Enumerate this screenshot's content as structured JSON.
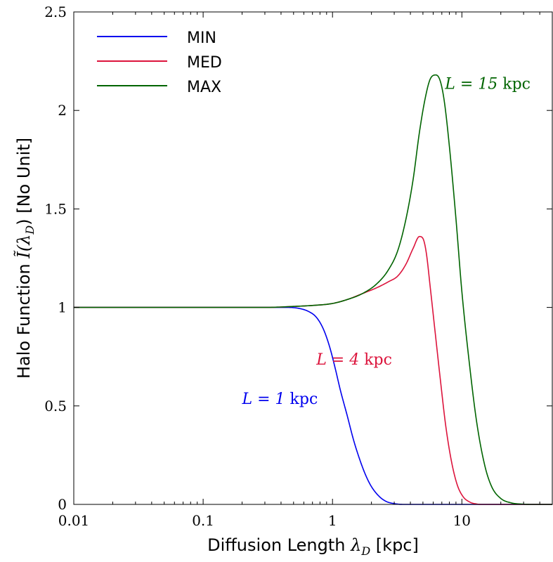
{
  "chart_data": {
    "type": "line",
    "x_scale": "log",
    "xlim": [
      0.01,
      50
    ],
    "ylim": [
      0,
      2.5
    ],
    "xlabel": "Diffusion Length λD [kpc]",
    "xlabel_main": "Diffusion Length ",
    "xlabel_symbol": "λ",
    "xlabel_sub": "D",
    "xlabel_unit": " [kpc]",
    "ylabel": "Halo Function Ĩ(λD) [No Unit]",
    "ylabel_main": "Halo Function ",
    "ylabel_symbol": "Ĩ(λ",
    "ylabel_sub": "D",
    "ylabel_unit": ") [No Unit]",
    "x_ticks": [
      {
        "value": 0.01,
        "label": "0.01"
      },
      {
        "value": 0.1,
        "label": "0.1"
      },
      {
        "value": 1,
        "label": "1"
      },
      {
        "value": 10,
        "label": "10"
      }
    ],
    "y_ticks": [
      {
        "value": 0,
        "label": "0"
      },
      {
        "value": 0.5,
        "label": "0.5"
      },
      {
        "value": 1,
        "label": "1"
      },
      {
        "value": 1.5,
        "label": "1.5"
      },
      {
        "value": 2,
        "label": "2"
      },
      {
        "value": 2.5,
        "label": "2.5"
      }
    ],
    "legend_position": "top-left",
    "grid": false,
    "series": [
      {
        "name": "MIN",
        "color": "#0000ee",
        "points": [
          [
            0.01,
            1.0
          ],
          [
            0.1,
            1.0
          ],
          [
            0.3,
            1.0
          ],
          [
            0.45,
            1.0
          ],
          [
            0.55,
            0.995
          ],
          [
            0.65,
            0.98
          ],
          [
            0.75,
            0.95
          ],
          [
            0.85,
            0.89
          ],
          [
            0.95,
            0.8
          ],
          [
            1.05,
            0.69
          ],
          [
            1.15,
            0.58
          ],
          [
            1.3,
            0.45
          ],
          [
            1.45,
            0.33
          ],
          [
            1.6,
            0.24
          ],
          [
            1.8,
            0.15
          ],
          [
            2.0,
            0.09
          ],
          [
            2.3,
            0.04
          ],
          [
            2.6,
            0.015
          ],
          [
            3.0,
            0.004
          ],
          [
            3.5,
            0.0
          ],
          [
            50,
            0.0
          ]
        ]
      },
      {
        "name": "MED",
        "color": "#dc143c",
        "points": [
          [
            0.01,
            1.0
          ],
          [
            0.1,
            1.0
          ],
          [
            0.3,
            1.0
          ],
          [
            0.5,
            1.005
          ],
          [
            0.7,
            1.01
          ],
          [
            1.0,
            1.02
          ],
          [
            1.3,
            1.04
          ],
          [
            1.7,
            1.07
          ],
          [
            2.2,
            1.1
          ],
          [
            2.7,
            1.13
          ],
          [
            3.2,
            1.16
          ],
          [
            3.7,
            1.22
          ],
          [
            4.2,
            1.3
          ],
          [
            4.7,
            1.36
          ],
          [
            5.0,
            1.35
          ],
          [
            5.3,
            1.28
          ],
          [
            5.7,
            1.1
          ],
          [
            6.2,
            0.88
          ],
          [
            6.8,
            0.64
          ],
          [
            7.5,
            0.4
          ],
          [
            8.3,
            0.22
          ],
          [
            9.2,
            0.1
          ],
          [
            10.2,
            0.04
          ],
          [
            11.5,
            0.012
          ],
          [
            13,
            0.002
          ],
          [
            14,
            0.0
          ],
          [
            50,
            0.0
          ]
        ]
      },
      {
        "name": "MAX",
        "color": "#006400",
        "points": [
          [
            0.01,
            1.0
          ],
          [
            0.1,
            1.0
          ],
          [
            0.3,
            1.0
          ],
          [
            0.5,
            1.005
          ],
          [
            0.7,
            1.01
          ],
          [
            1.0,
            1.02
          ],
          [
            1.3,
            1.04
          ],
          [
            1.7,
            1.07
          ],
          [
            2.2,
            1.12
          ],
          [
            2.7,
            1.19
          ],
          [
            3.2,
            1.29
          ],
          [
            3.7,
            1.45
          ],
          [
            4.2,
            1.65
          ],
          [
            4.7,
            1.89
          ],
          [
            5.2,
            2.06
          ],
          [
            5.7,
            2.16
          ],
          [
            6.3,
            2.18
          ],
          [
            6.8,
            2.15
          ],
          [
            7.3,
            2.05
          ],
          [
            8.0,
            1.82
          ],
          [
            9.0,
            1.45
          ],
          [
            10.0,
            1.08
          ],
          [
            11.5,
            0.7
          ],
          [
            13.0,
            0.42
          ],
          [
            15.0,
            0.2
          ],
          [
            17.0,
            0.09
          ],
          [
            20.0,
            0.03
          ],
          [
            24.0,
            0.008
          ],
          [
            30.0,
            0.001
          ],
          [
            35.0,
            0.0
          ],
          [
            50.0,
            0.0
          ]
        ]
      }
    ],
    "annotations": [
      {
        "text_main": "L = 1",
        "text_unit": " kpc",
        "x": 0.2,
        "y": 0.51,
        "color": "#0000ee"
      },
      {
        "text_main": "L = 4",
        "text_unit": " kpc",
        "x": 0.75,
        "y": 0.71,
        "color": "#dc143c"
      },
      {
        "text_main": "L = 15",
        "text_unit": " kpc",
        "x": 7.4,
        "y": 2.11,
        "color": "#006400"
      }
    ]
  }
}
